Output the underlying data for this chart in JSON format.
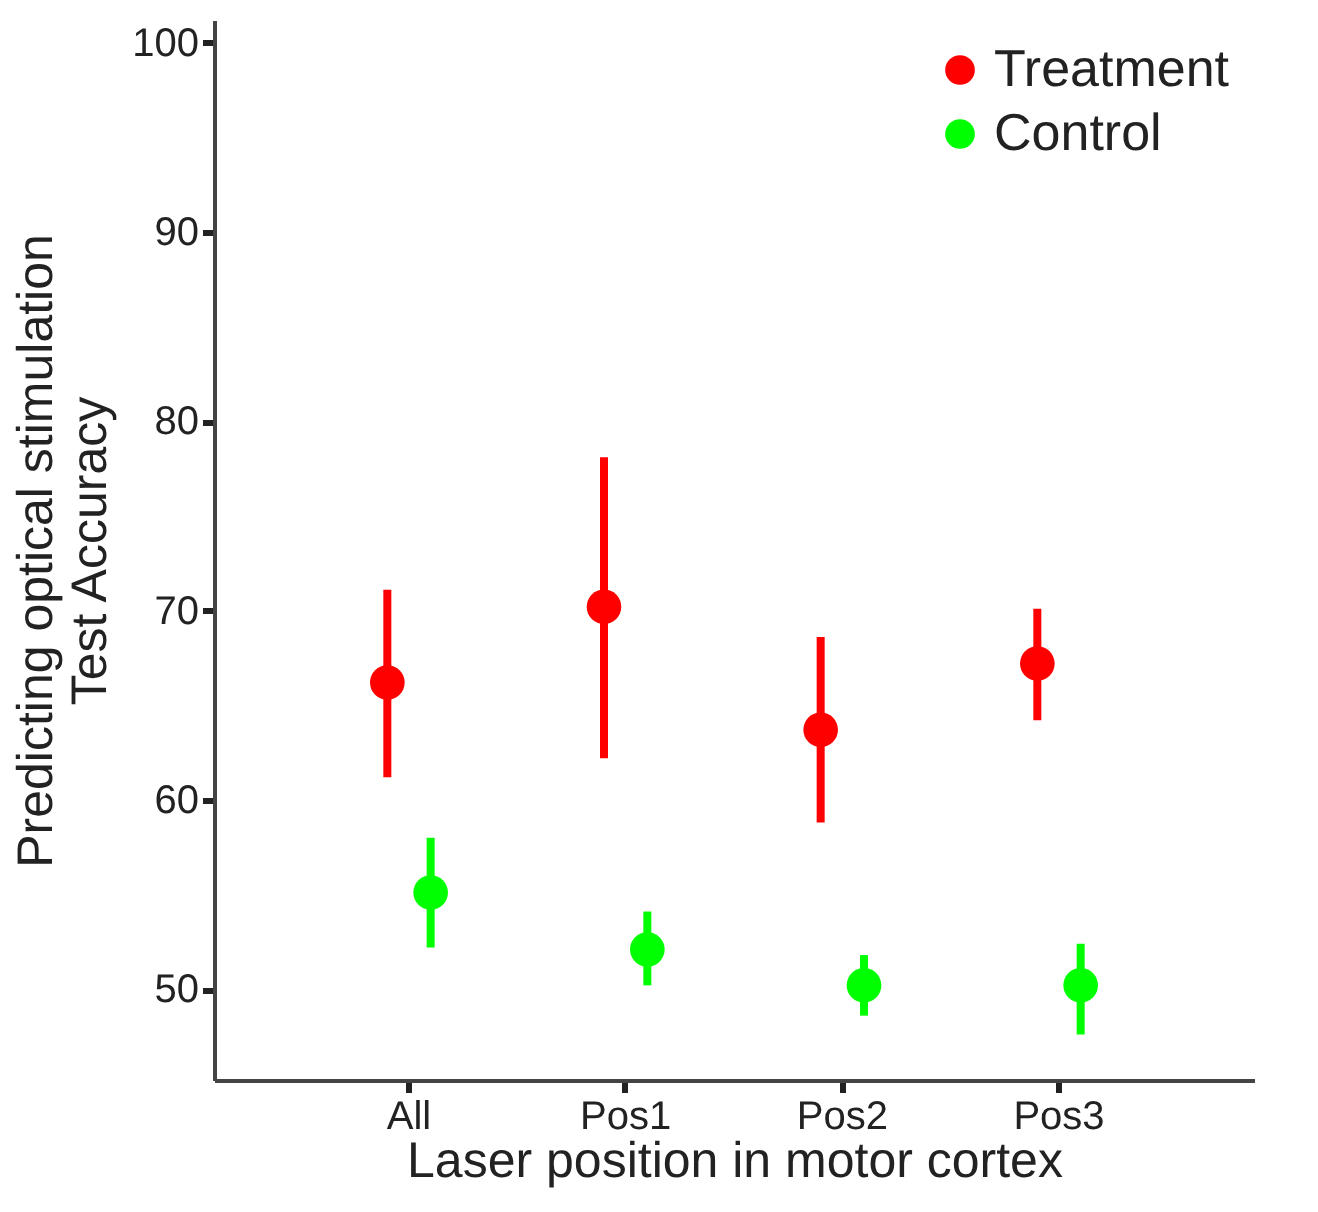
{
  "chart_data": {
    "type": "scatter",
    "xlabel": "Laser position in motor cortex",
    "ylabel": "Predicting optical stimulation\nTest Accuracy",
    "categories": [
      "All",
      "Pos1",
      "Pos2",
      "Pos3"
    ],
    "series": [
      {
        "name": "Treatment",
        "color": "#ff0000",
        "values": [
          66.2,
          70.2,
          63.7,
          67.2
        ],
        "errors": [
          [
            61.2,
            71.1
          ],
          [
            62.2,
            78.1
          ],
          [
            58.8,
            68.6
          ],
          [
            64.2,
            70.1
          ]
        ]
      },
      {
        "name": "Control",
        "color": "#00ff00",
        "values": [
          55.1,
          52.1,
          50.2,
          50.2
        ],
        "errors": [
          [
            52.2,
            58.0
          ],
          [
            50.2,
            54.1
          ],
          [
            48.6,
            51.8
          ],
          [
            47.6,
            52.4
          ]
        ]
      }
    ],
    "ylim": [
      45.2,
      101.2
    ],
    "yticks": [
      50,
      60,
      70,
      80,
      90,
      100
    ],
    "grid": false,
    "legend": "top right",
    "marker": "circle"
  }
}
